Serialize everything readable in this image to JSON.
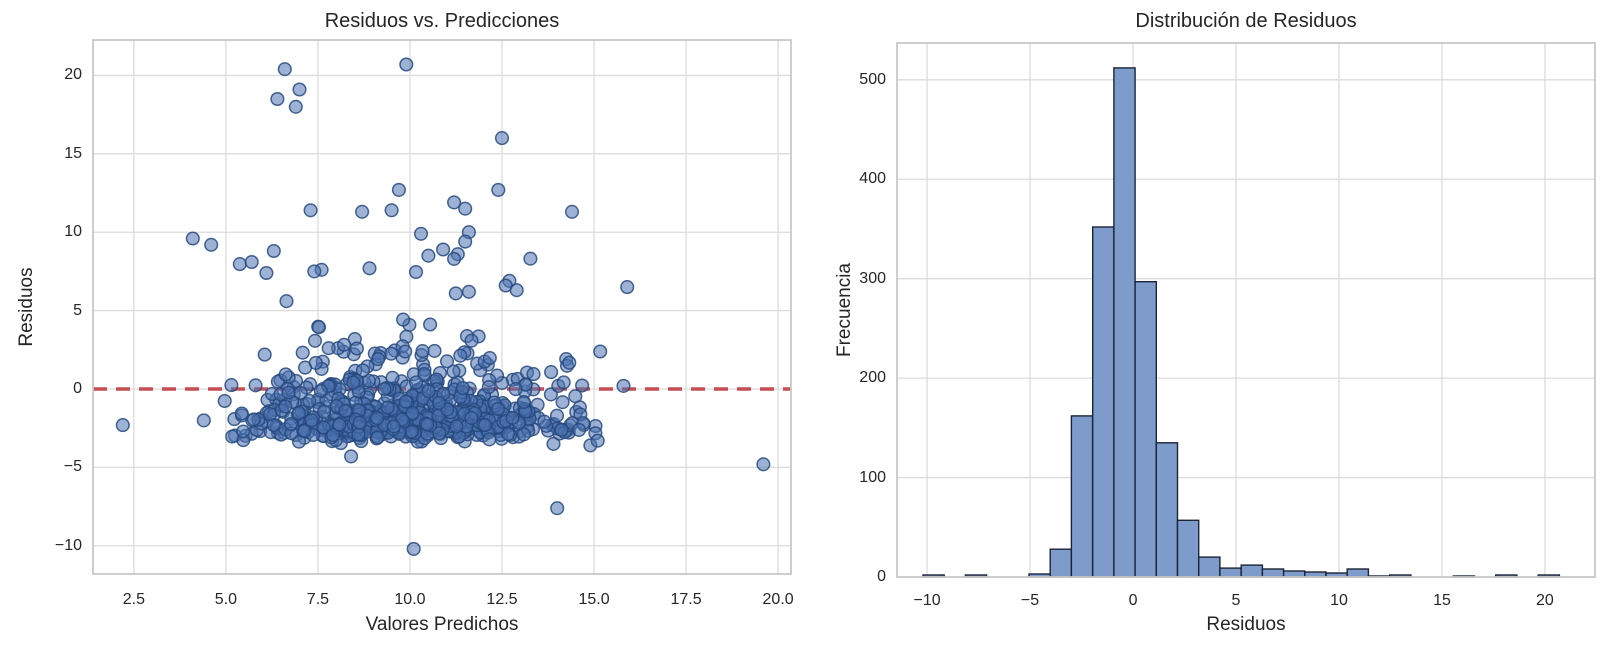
{
  "figure": {
    "background": "#ffffff",
    "grid_color": "#dcdcdc",
    "spine_color": "#c9c9c9",
    "text_color": "#262626",
    "accent_blue": "#4C72B0",
    "accent_red": "#C44E52"
  },
  "chart_data": [
    {
      "type": "scatter",
      "title": "Residuos vs. Predicciones",
      "xlabel": "Valores Predichos",
      "ylabel": "Residuos",
      "xlim": [
        1.39,
        20.35
      ],
      "ylim": [
        -11.8,
        22.26
      ],
      "x_ticks": [
        2.5,
        5.0,
        7.5,
        10.0,
        12.5,
        15.0,
        17.5,
        20.0
      ],
      "x_tick_labels": [
        "2.5",
        "5.0",
        "7.5",
        "10.0",
        "12.5",
        "15.0",
        "17.5",
        "20.0"
      ],
      "y_ticks": [
        20,
        15,
        10,
        5,
        0,
        -5,
        -10
      ],
      "y_tick_labels": [
        "20",
        "15",
        "10",
        "5",
        "0",
        "−5",
        "−10"
      ],
      "grid": true,
      "legend": null,
      "reference_line": {
        "type": "horizontal",
        "y": 0,
        "color": "#C44E52",
        "style": "dashed",
        "dash": [
          14,
          9
        ],
        "width": 3.5
      },
      "point_style": {
        "fill": "#4C72B0",
        "fill_opacity": 0.55,
        "stroke": "#26497E",
        "stroke_opacity": 0.85,
        "stroke_width": 1.5,
        "radius": 6.3
      },
      "cluster": {
        "count": 780,
        "seed": 7,
        "x_mean": 9.9,
        "x_std": 2.3,
        "x_min": 4.95,
        "x_max": 15.2,
        "y_offset": -2.95,
        "y_exp_scale": 1.75,
        "y_jitter": 0.28,
        "y_max": 9.2
      },
      "outlier_points": [
        [
          6.6,
          20.4
        ],
        [
          9.9,
          20.7
        ],
        [
          7.0,
          19.1
        ],
        [
          6.4,
          18.5
        ],
        [
          6.9,
          18.0
        ],
        [
          12.5,
          16.0
        ],
        [
          9.7,
          12.7
        ],
        [
          12.4,
          12.7
        ],
        [
          11.2,
          11.9
        ],
        [
          7.3,
          11.4
        ],
        [
          9.5,
          11.4
        ],
        [
          11.5,
          11.5
        ],
        [
          8.7,
          11.3
        ],
        [
          14.4,
          11.3
        ],
        [
          10.3,
          9.9
        ],
        [
          11.6,
          10.0
        ],
        [
          4.1,
          9.6
        ],
        [
          11.5,
          9.4
        ],
        [
          4.6,
          9.2
        ],
        [
          6.3,
          8.8
        ],
        [
          10.9,
          8.9
        ],
        [
          11.3,
          8.6
        ],
        [
          5.7,
          8.1
        ],
        [
          11.2,
          8.3
        ],
        [
          10.5,
          8.5
        ],
        [
          8.9,
          7.7
        ],
        [
          7.6,
          7.6
        ],
        [
          6.1,
          7.4
        ],
        [
          7.4,
          7.5
        ],
        [
          12.7,
          6.9
        ],
        [
          12.6,
          6.6
        ],
        [
          15.9,
          6.5
        ],
        [
          12.9,
          6.3
        ],
        [
          11.6,
          6.2
        ],
        [
          2.2,
          -2.3
        ],
        [
          4.4,
          -2.0
        ],
        [
          19.6,
          -4.8
        ],
        [
          14.0,
          -7.6
        ],
        [
          10.1,
          -10.2
        ],
        [
          15.8,
          0.2
        ],
        [
          14.9,
          -3.6
        ],
        [
          8.4,
          -4.3
        ],
        [
          15.1,
          -3.3
        ],
        [
          13.9,
          -3.5
        ]
      ]
    },
    {
      "type": "bar",
      "subtype": "histogram",
      "title": "Distribución de Residuos",
      "xlabel": "Residuos",
      "ylabel": "Frecuencia",
      "xlim": [
        -11.46,
        22.43
      ],
      "ylim": [
        0,
        537
      ],
      "x_ticks": [
        -10,
        -5,
        0,
        5,
        10,
        15,
        20
      ],
      "x_tick_labels": [
        "−10",
        "−5",
        "0",
        "5",
        "10",
        "15",
        "20"
      ],
      "y_ticks": [
        0,
        100,
        200,
        300,
        400,
        500
      ],
      "y_tick_labels": [
        "0",
        "100",
        "200",
        "300",
        "400",
        "500"
      ],
      "grid": true,
      "legend": null,
      "bin_start": -10.2,
      "bin_width": 1.03,
      "counts": [
        2,
        0,
        2,
        0,
        0,
        3,
        28,
        162,
        352,
        512,
        297,
        135,
        57,
        20,
        9,
        12,
        8,
        6,
        5,
        4,
        8,
        1,
        2,
        0,
        0,
        1,
        0,
        2,
        0,
        2
      ],
      "bar_style": {
        "fill": "#7D9BCB",
        "stroke": "#1C2436",
        "stroke_width": 1.4
      }
    }
  ]
}
